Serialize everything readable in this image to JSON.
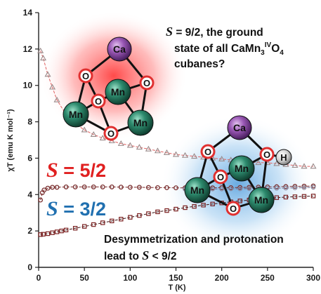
{
  "chart_data": {
    "type": "scatter",
    "xlabel": "T (K)",
    "ylabel": "χT (emu K mol⁻¹)",
    "xlim": [
      0,
      300
    ],
    "ylim": [
      0,
      14
    ],
    "xticks": [
      "0",
      "50",
      "100",
      "150",
      "200",
      "250",
      "300"
    ],
    "yticks": [
      "0",
      "2",
      "4",
      "6",
      "8",
      "10",
      "12",
      "14"
    ],
    "grid": false,
    "series": [
      {
        "marker": "triangle",
        "color": "#9a8a8a",
        "fit_color": "#e06060",
        "x": [
          2,
          5,
          10,
          15,
          20,
          30,
          40,
          50,
          60,
          70,
          80,
          90,
          100,
          110,
          120,
          130,
          140,
          150,
          160,
          170,
          180,
          190,
          200,
          210,
          220,
          230,
          240,
          250,
          260,
          270,
          280,
          290,
          300
        ],
        "y": [
          11.9,
          11.5,
          10.6,
          9.9,
          9.2,
          8.4,
          7.9,
          7.55,
          7.3,
          7.1,
          6.95,
          6.8,
          6.7,
          6.6,
          6.5,
          6.4,
          6.3,
          6.2,
          6.15,
          6.1,
          6.05,
          6.0,
          5.95,
          5.9,
          5.85,
          5.8,
          5.75,
          5.75,
          5.7,
          5.65,
          5.6,
          5.55,
          5.55
        ]
      },
      {
        "marker": "circle",
        "color": "#7a3030",
        "fit_color": "#7a2a2a",
        "x": [
          2,
          4,
          6,
          10,
          15,
          20,
          30,
          40,
          50,
          60,
          70,
          80,
          90,
          100,
          110,
          120,
          130,
          140,
          150,
          160,
          170,
          180,
          190,
          200,
          210,
          220,
          230,
          240,
          250,
          260,
          270,
          280,
          290,
          300
        ],
        "y": [
          3.7,
          4.1,
          4.25,
          4.35,
          4.4,
          4.4,
          4.42,
          4.42,
          4.42,
          4.42,
          4.42,
          4.42,
          4.41,
          4.4,
          4.4,
          4.39,
          4.38,
          4.38,
          4.37,
          4.37,
          4.37,
          4.37,
          4.37,
          4.38,
          4.38,
          4.39,
          4.4,
          4.41,
          4.42,
          4.43,
          4.44,
          4.45,
          4.46,
          4.47
        ]
      },
      {
        "marker": "circle-open",
        "color": "#8a8aa0",
        "fit_color": "#6a6a8a",
        "x": [
          160,
          170,
          180,
          190,
          200,
          210,
          220,
          230,
          240,
          250,
          260,
          270,
          280,
          290,
          300
        ],
        "y": [
          4.3,
          4.3,
          4.3,
          4.31,
          4.31,
          4.32,
          4.32,
          4.33,
          4.33,
          4.34,
          4.35,
          4.36,
          4.37,
          4.38,
          4.4
        ]
      },
      {
        "marker": "square",
        "color": "#7a2020",
        "fit_color": "#3a1010",
        "x": [
          2,
          5,
          10,
          15,
          20,
          25,
          30,
          40,
          50,
          60,
          70,
          80,
          90,
          100,
          110,
          120,
          130,
          140,
          150,
          160,
          170,
          180,
          190,
          200,
          210,
          220,
          230,
          240,
          250,
          260,
          270,
          280,
          290,
          300
        ],
        "y": [
          1.8,
          1.82,
          1.85,
          1.9,
          1.95,
          2.0,
          2.05,
          2.15,
          2.25,
          2.35,
          2.45,
          2.55,
          2.65,
          2.75,
          2.85,
          2.95,
          3.05,
          3.12,
          3.2,
          3.28,
          3.35,
          3.42,
          3.48,
          3.54,
          3.6,
          3.65,
          3.7,
          3.75,
          3.8,
          3.83,
          3.86,
          3.88,
          3.9,
          3.92
        ]
      }
    ]
  },
  "annotations": {
    "s92": {
      "prefix": "S",
      "text": " = 9/2, the ground",
      "line2": "state of all CaMn",
      "line2_sub": "3",
      "line2_sup": "IV",
      "line2_tail": "O",
      "line2_sub2": "4",
      "line3": "cubanes?"
    },
    "s52": {
      "prefix": "S",
      "text": " = 5/2",
      "color": "#e02020"
    },
    "s32": {
      "prefix": "S",
      "text": " = 3/2",
      "color": "#2070b0"
    },
    "bottom": {
      "line1": "Desymmetrization and protonation",
      "line2_pre": "lead to ",
      "line2_S": "S",
      "line2_post": " < 9/2"
    }
  },
  "cubanes": {
    "red_glow": "#ff3a3a",
    "blue_glow": "#4aa0e0",
    "ca_color": "#9b59b6",
    "mn_color": "#2e8b6e",
    "o_color": "#e84040",
    "h_color": "#d8d8d8",
    "labels": {
      "ca": "Ca",
      "mn": "Mn",
      "o": "O",
      "h": "H"
    }
  }
}
